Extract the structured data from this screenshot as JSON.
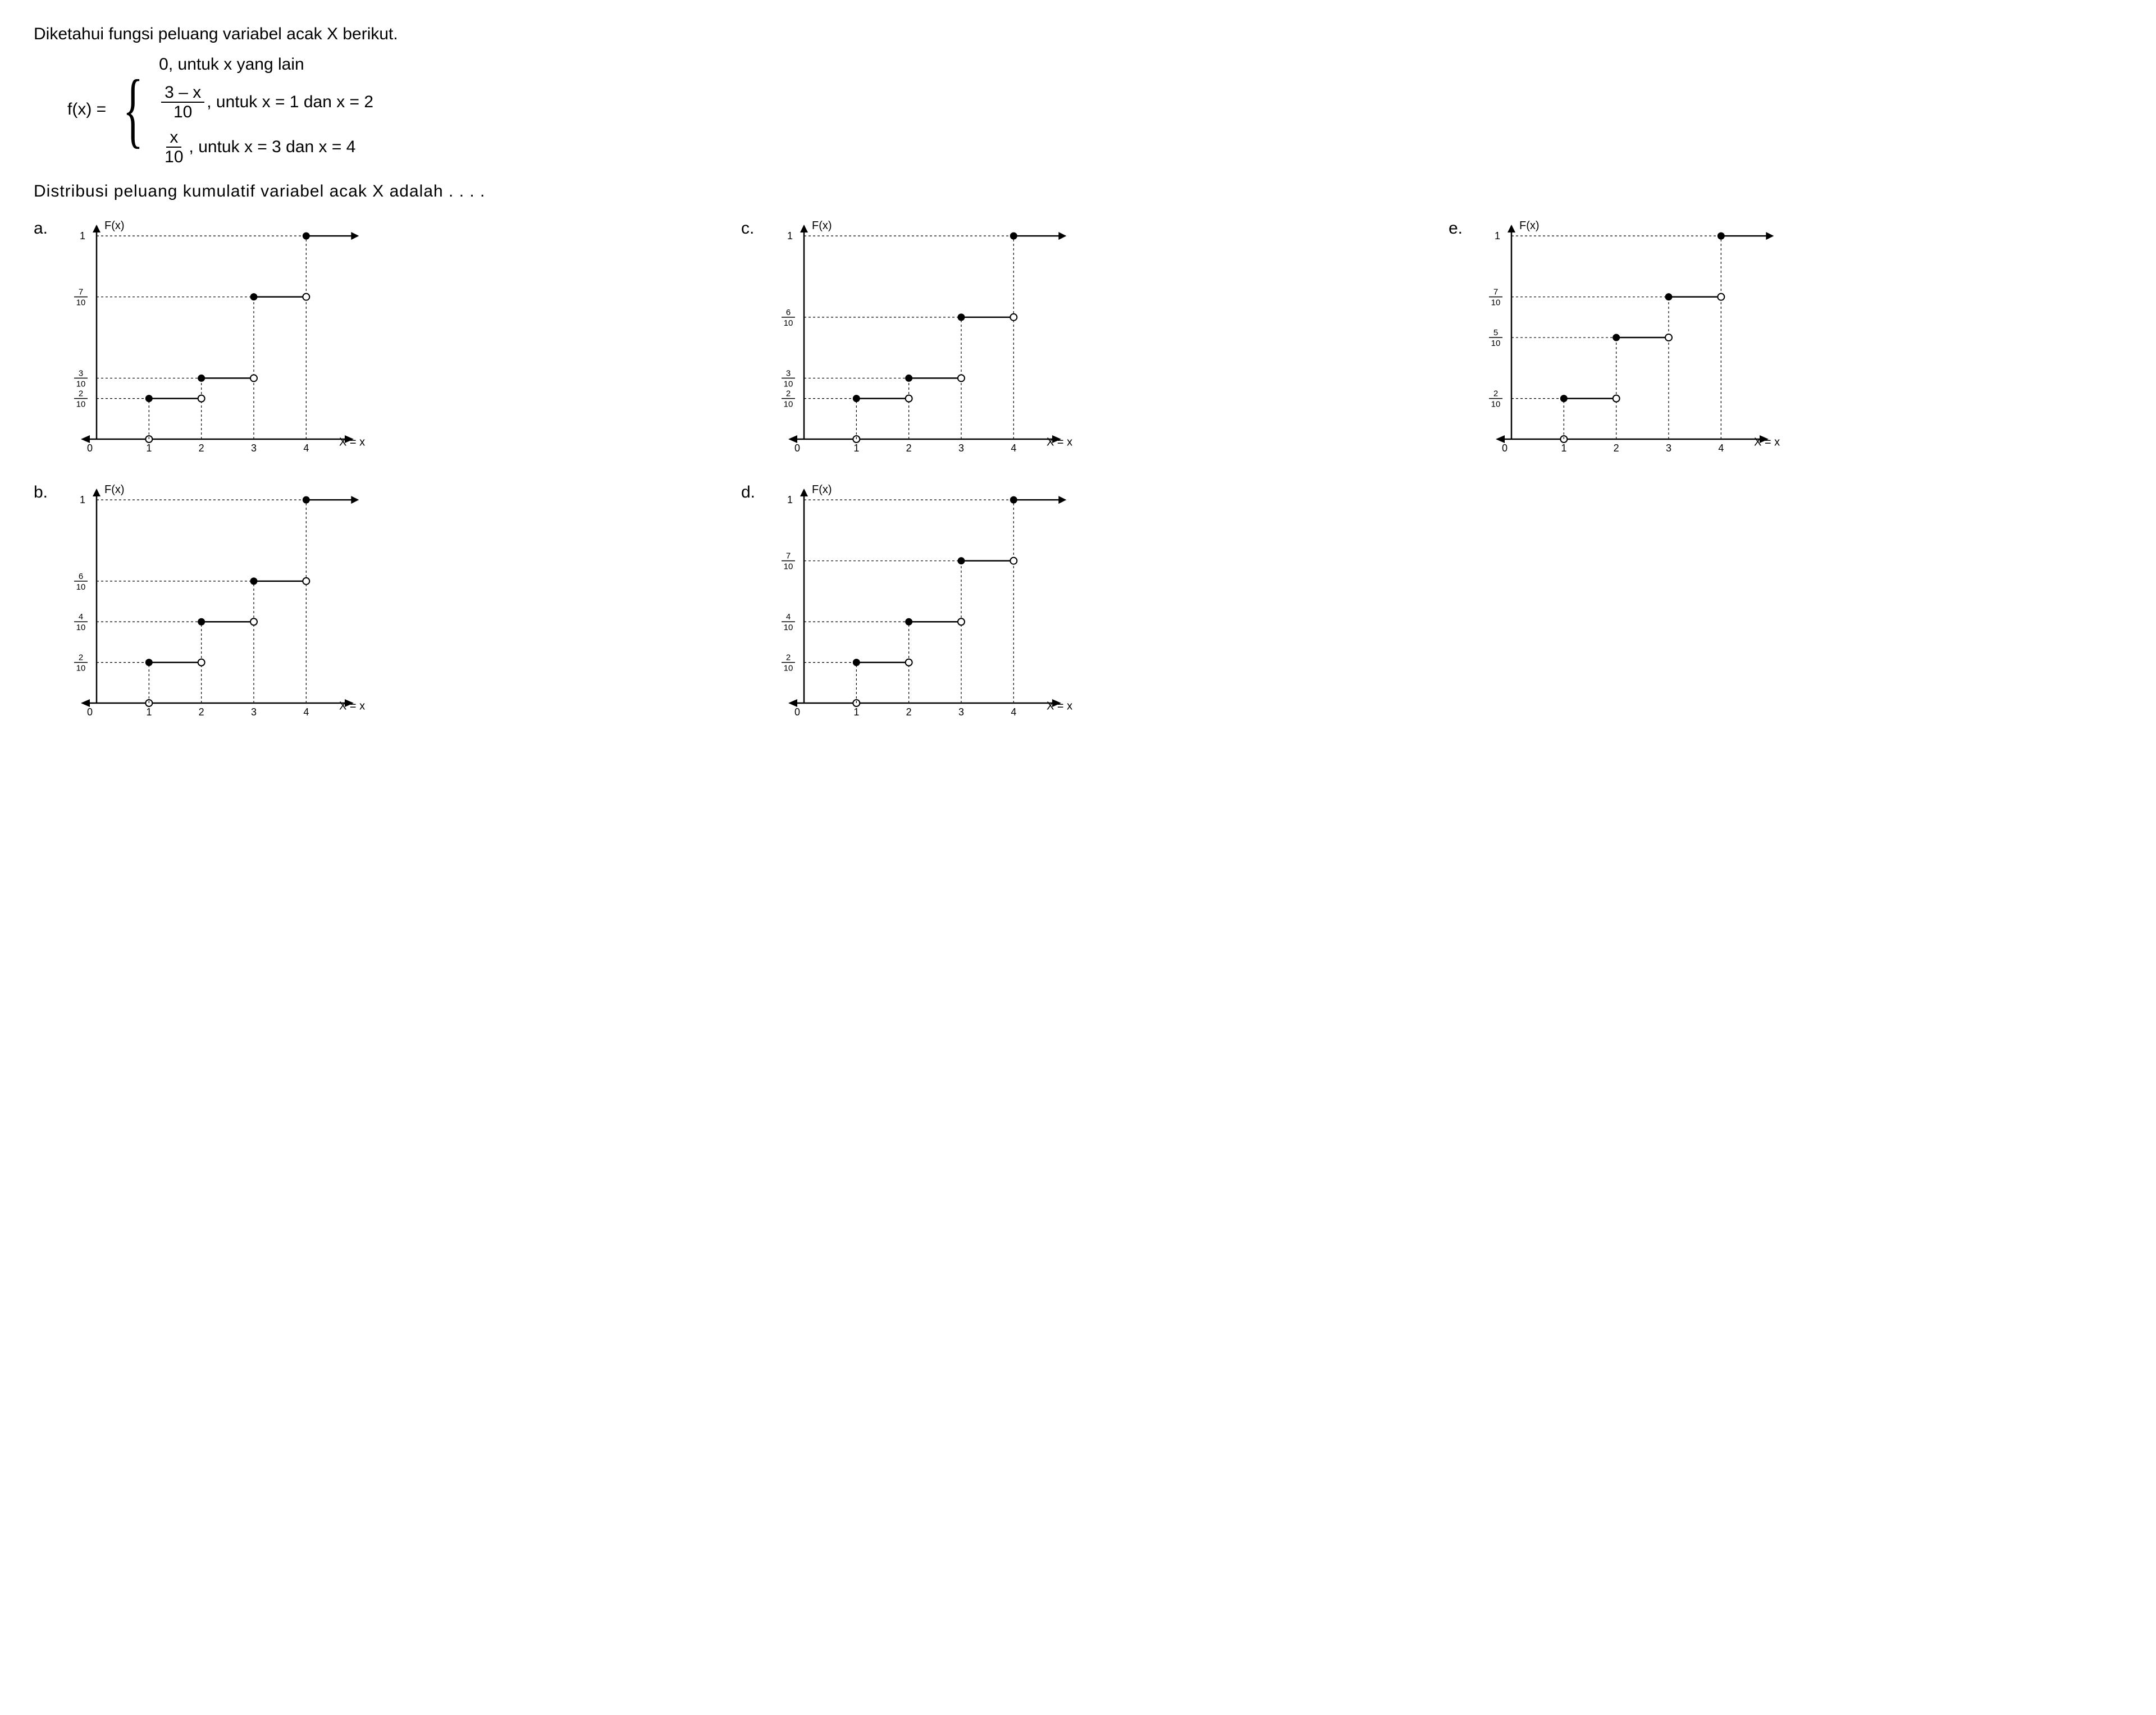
{
  "question": "Diketahui fungsi peluang variabel acak X berikut.",
  "fx_label": "f(x)  =",
  "cases": {
    "c1": "0, untuk x yang lain",
    "c2_num": "3 – x",
    "c2_den": "10",
    "c2_txt": ", untuk x = 1 dan x = 2",
    "c3_num": "x",
    "c3_den": "10",
    "c3_txt": ", untuk x = 3 dan x = 4"
  },
  "prompt": "Distribusi peluang kumulatif variabel acak X adalah . . . .",
  "labels": {
    "a": "a.",
    "b": "b.",
    "c": "c.",
    "d": "d.",
    "e": "e."
  },
  "chart_common": {
    "y_title": "F(x)",
    "x_title": "X = x",
    "x_ticks": [
      "0",
      "1",
      "2",
      "3",
      "4"
    ],
    "colors": {
      "axis": "#000000",
      "dash": "#000000",
      "fill": "#000000",
      "bg": "#ffffff"
    },
    "marker_r": 6,
    "line_w": 2.5,
    "dash_pattern": "4 4",
    "font_size_tick": 18,
    "font_size_axis": 20
  },
  "charts": {
    "a": {
      "y_ticks": [
        {
          "n": "2",
          "d": "10",
          "v": 0.2
        },
        {
          "n": "3",
          "d": "10",
          "v": 0.3
        },
        {
          "n": "7",
          "d": "10",
          "v": 0.7
        },
        {
          "n": "1",
          "d": "",
          "v": 1.0
        }
      ],
      "steps": [
        0.2,
        0.3,
        0.7,
        1.0
      ]
    },
    "b": {
      "y_ticks": [
        {
          "n": "2",
          "d": "10",
          "v": 0.2
        },
        {
          "n": "4",
          "d": "10",
          "v": 0.4
        },
        {
          "n": "6",
          "d": "10",
          "v": 0.6
        },
        {
          "n": "1",
          "d": "",
          "v": 1.0
        }
      ],
      "steps": [
        0.2,
        0.4,
        0.6,
        1.0
      ]
    },
    "c": {
      "y_ticks": [
        {
          "n": "2",
          "d": "10",
          "v": 0.2
        },
        {
          "n": "3",
          "d": "10",
          "v": 0.3
        },
        {
          "n": "6",
          "d": "10",
          "v": 0.6
        },
        {
          "n": "1",
          "d": "",
          "v": 1.0
        }
      ],
      "steps": [
        0.2,
        0.3,
        0.6,
        1.0
      ]
    },
    "d": {
      "y_ticks": [
        {
          "n": "2",
          "d": "10",
          "v": 0.2
        },
        {
          "n": "4",
          "d": "10",
          "v": 0.4
        },
        {
          "n": "7",
          "d": "10",
          "v": 0.7
        },
        {
          "n": "1",
          "d": "",
          "v": 1.0
        }
      ],
      "steps": [
        0.2,
        0.4,
        0.7,
        1.0
      ]
    },
    "e": {
      "y_ticks": [
        {
          "n": "2",
          "d": "10",
          "v": 0.2
        },
        {
          "n": "5",
          "d": "10",
          "v": 0.5
        },
        {
          "n": "7",
          "d": "10",
          "v": 0.7
        },
        {
          "n": "1",
          "d": "",
          "v": 1.0
        }
      ],
      "steps": [
        0.2,
        0.5,
        0.7,
        1.0
      ]
    }
  }
}
